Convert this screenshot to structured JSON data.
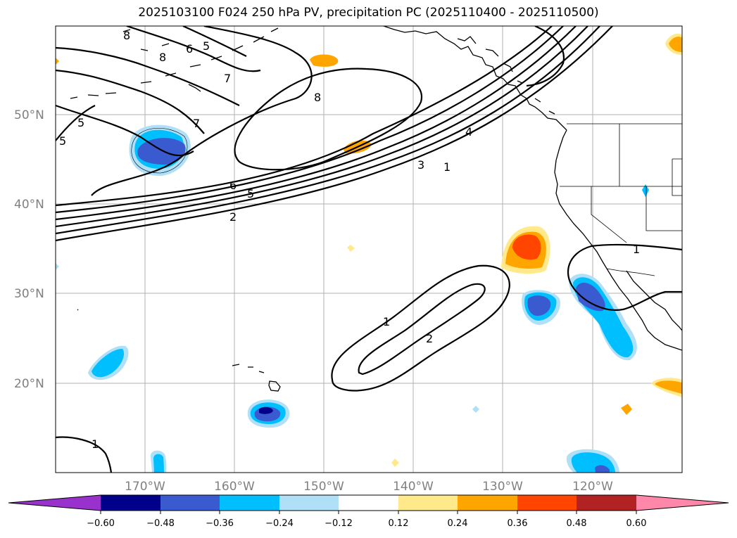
{
  "title": "2025103100 F024 250 hPa PV, precipitation PC (2025110400 - 2025110500)",
  "latitude_labels": [
    "50°N",
    "40°N",
    "30°N",
    "20°N"
  ],
  "longitude_labels": [
    "170°W",
    "160°W",
    "150°W",
    "140°W",
    "130°W",
    "120°W"
  ],
  "colorbar": {
    "tick_labels": [
      "−0.60",
      "−0.48",
      "−0.36",
      "−0.24",
      "−0.12",
      "0.12",
      "0.24",
      "0.36",
      "0.48",
      "0.60"
    ],
    "colors": [
      "#9932cc",
      "#00008b",
      "#3a5bd0",
      "#00bfff",
      "#b0e0f8",
      "#ffffff",
      "#ffe98a",
      "#ffa500",
      "#ff4500",
      "#b22222",
      "#ff88aa"
    ]
  },
  "pv_contour_labels": [
    "8",
    "6",
    "5",
    "8",
    "7",
    "8",
    "7",
    "5",
    "5",
    "6",
    "5",
    "2",
    "4",
    "3",
    "1",
    "1",
    "1",
    "2",
    "1"
  ],
  "colors": {
    "gridline": "#b0b0b0",
    "contour": "#000000",
    "coast": "#000000"
  }
}
